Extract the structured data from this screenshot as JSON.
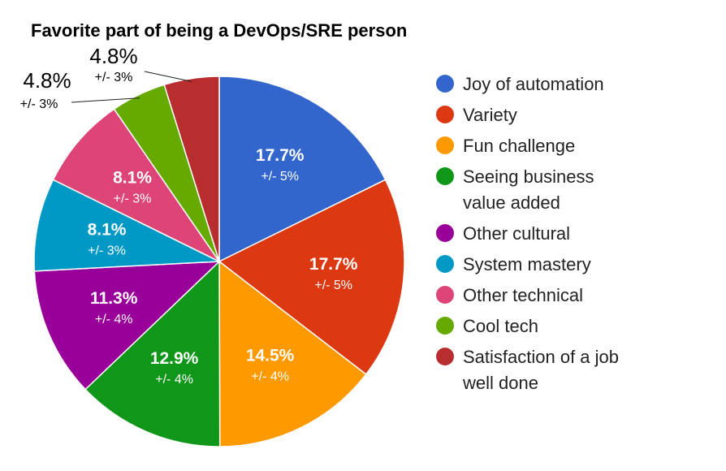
{
  "chart_data": {
    "type": "pie",
    "title": "Favorite part of being a DevOps/SRE person",
    "legend_position": "right",
    "slices": [
      {
        "label": [
          "Joy of automation"
        ],
        "value": 17.7,
        "value_label": "17.7%",
        "error_label": "+/- 5%",
        "color": "#3366cc",
        "label_placement": "inside"
      },
      {
        "label": [
          "Variety"
        ],
        "value": 17.7,
        "value_label": "17.7%",
        "error_label": "+/- 5%",
        "color": "#dc3912",
        "label_placement": "inside"
      },
      {
        "label": [
          "Fun challenge"
        ],
        "value": 14.5,
        "value_label": "14.5%",
        "error_label": "+/- 4%",
        "color": "#ff9900",
        "label_placement": "inside"
      },
      {
        "label": [
          "Seeing business",
          "value added"
        ],
        "value": 12.9,
        "value_label": "12.9%",
        "error_label": "+/- 4%",
        "color": "#109618",
        "label_placement": "inside"
      },
      {
        "label": [
          "Other cultural"
        ],
        "value": 11.3,
        "value_label": "11.3%",
        "error_label": "+/- 4%",
        "color": "#990099",
        "label_placement": "inside"
      },
      {
        "label": [
          "System mastery"
        ],
        "value": 8.1,
        "value_label": "8.1%",
        "error_label": "+/- 3%",
        "color": "#0099c6",
        "label_placement": "inside"
      },
      {
        "label": [
          "Other technical"
        ],
        "value": 8.1,
        "value_label": "8.1%",
        "error_label": "+/- 3%",
        "color": "#dd4477",
        "label_placement": "inside"
      },
      {
        "label": [
          "Cool tech"
        ],
        "value": 4.8,
        "value_label": "4.8%",
        "error_label": "+/- 3%",
        "color": "#66aa00",
        "label_placement": "outside"
      },
      {
        "label": [
          "Satisfaction of a job",
          "well done"
        ],
        "value": 4.8,
        "value_label": "4.8%",
        "error_label": "+/- 3%",
        "color": "#b82e2e",
        "label_placement": "outside"
      }
    ]
  }
}
